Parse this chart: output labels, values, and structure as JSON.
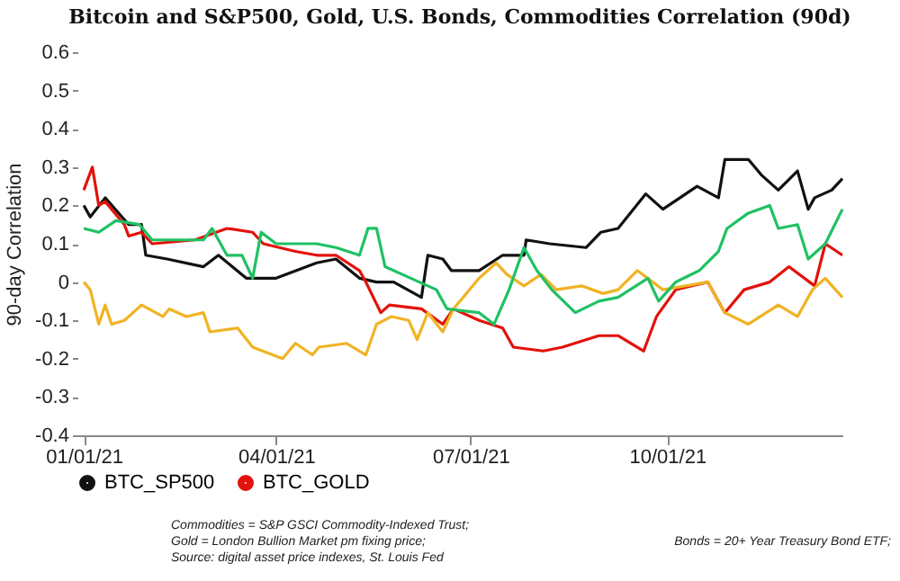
{
  "chart_data": {
    "type": "line",
    "title": "Bitcoin and S&P500, Gold, U.S. Bonds, Commodities Correlation (90d)",
    "ylabel": "90-day Correlation",
    "xlim": [
      "2020-12-29",
      "2021-12-22"
    ],
    "xticks": [
      {
        "value": "2021-01-01",
        "label": "01/01/21"
      },
      {
        "value": "2021-04-01",
        "label": "04/01/21"
      },
      {
        "value": "2021-07-01",
        "label": "07/01/21"
      },
      {
        "value": "2021-10-01",
        "label": "10/01/21"
      }
    ],
    "ylim": [
      -0.4,
      0.6
    ],
    "yticks": [
      -0.4,
      -0.3,
      -0.2,
      -0.1,
      0,
      0.1,
      0.2,
      0.3,
      0.4,
      0.5,
      0.6
    ],
    "grid": false,
    "legend": "bottom",
    "marker": "none",
    "line_style": "solid",
    "series": [
      {
        "name": "BTC_SP500",
        "color": "#111111",
        "x": [
          "2021-01-01",
          "2021-01-04",
          "2021-01-11",
          "2021-01-22",
          "2021-01-28",
          "2021-01-30",
          "2021-02-09",
          "2021-02-26",
          "2021-03-05",
          "2021-03-18",
          "2021-04-01",
          "2021-04-20",
          "2021-04-29",
          "2021-05-10",
          "2021-05-18",
          "2021-05-26",
          "2021-06-08",
          "2021-06-11",
          "2021-06-18",
          "2021-06-22",
          "2021-07-05",
          "2021-07-16",
          "2021-07-26",
          "2021-07-27",
          "2021-08-07",
          "2021-08-24",
          "2021-08-31",
          "2021-09-08",
          "2021-09-21",
          "2021-09-29",
          "2021-10-15",
          "2021-10-25",
          "2021-10-28",
          "2021-11-08",
          "2021-11-14",
          "2021-11-22",
          "2021-12-01",
          "2021-12-06",
          "2021-12-09",
          "2021-12-17",
          "2021-12-22"
        ],
        "values": [
          0.2,
          0.17,
          0.22,
          0.15,
          0.15,
          0.07,
          0.06,
          0.04,
          0.07,
          0.01,
          0.01,
          0.05,
          0.06,
          0.01,
          0,
          0,
          -0.04,
          0.07,
          0.06,
          0.03,
          0.03,
          0.07,
          0.07,
          0.11,
          0.1,
          0.09,
          0.13,
          0.14,
          0.23,
          0.19,
          0.25,
          0.22,
          0.32,
          0.32,
          0.28,
          0.24,
          0.29,
          0.19,
          0.22,
          0.24,
          0.27
        ]
      },
      {
        "name": "BTC_GOLD",
        "color": "#e3120b",
        "x": [
          "2021-01-01",
          "2021-01-05",
          "2021-01-08",
          "2021-01-11",
          "2021-01-20",
          "2021-01-22",
          "2021-01-28",
          "2021-02-02",
          "2021-02-22",
          "2021-03-09",
          "2021-03-21",
          "2021-03-26",
          "2021-04-10",
          "2021-04-20",
          "2021-04-29",
          "2021-05-10",
          "2021-05-13",
          "2021-05-20",
          "2021-05-24",
          "2021-06-08",
          "2021-06-18",
          "2021-06-23",
          "2021-07-05",
          "2021-07-16",
          "2021-07-21",
          "2021-08-04",
          "2021-08-13",
          "2021-08-30",
          "2021-09-08",
          "2021-09-20",
          "2021-09-26",
          "2021-10-05",
          "2021-10-20",
          "2021-10-28",
          "2021-11-06",
          "2021-11-18",
          "2021-11-27",
          "2021-12-09",
          "2021-12-14",
          "2021-12-22"
        ],
        "values": [
          0.24,
          0.3,
          0.2,
          0.21,
          0.15,
          0.12,
          0.13,
          0.1,
          0.11,
          0.14,
          0.13,
          0.1,
          0.08,
          0.07,
          0.07,
          0.03,
          0,
          -0.08,
          -0.06,
          -0.07,
          -0.11,
          -0.07,
          -0.1,
          -0.12,
          -0.17,
          -0.18,
          -0.17,
          -0.14,
          -0.14,
          -0.18,
          -0.09,
          -0.02,
          0,
          -0.08,
          -0.02,
          0,
          0.04,
          -0.01,
          0.1,
          0.07
        ]
      },
      {
        "color": "#f0b323",
        "x": [
          "2021-01-01",
          "2021-01-04",
          "2021-01-08",
          "2021-01-11",
          "2021-01-14",
          "2021-01-20",
          "2021-01-28",
          "2021-02-07",
          "2021-02-10",
          "2021-02-18",
          "2021-02-26",
          "2021-03-01",
          "2021-03-14",
          "2021-03-21",
          "2021-04-04",
          "2021-04-10",
          "2021-04-18",
          "2021-04-21",
          "2021-05-04",
          "2021-05-13",
          "2021-05-18",
          "2021-05-25",
          "2021-06-02",
          "2021-06-06",
          "2021-06-11",
          "2021-06-18",
          "2021-06-23",
          "2021-07-05",
          "2021-07-13",
          "2021-07-18",
          "2021-07-26",
          "2021-08-03",
          "2021-08-10",
          "2021-08-22",
          "2021-09-01",
          "2021-09-08",
          "2021-09-17",
          "2021-09-29",
          "2021-10-20",
          "2021-10-28",
          "2021-11-08",
          "2021-11-22",
          "2021-12-01",
          "2021-12-08",
          "2021-12-14",
          "2021-12-22"
        ],
        "values": [
          0,
          -0.02,
          -0.11,
          -0.06,
          -0.11,
          -0.1,
          -0.06,
          -0.09,
          -0.07,
          -0.09,
          -0.08,
          -0.13,
          -0.12,
          -0.17,
          -0.2,
          -0.16,
          -0.19,
          -0.17,
          -0.16,
          -0.19,
          -0.11,
          -0.09,
          -0.1,
          -0.15,
          -0.08,
          -0.13,
          -0.07,
          0.01,
          0.05,
          0.02,
          -0.01,
          0.02,
          -0.02,
          -0.01,
          -0.03,
          -0.02,
          0.03,
          -0.02,
          0,
          -0.08,
          -0.11,
          -0.06,
          -0.09,
          -0.02,
          0.01,
          -0.04
        ]
      },
      {
        "color": "#1fc163",
        "x": [
          "2021-01-01",
          "2021-01-08",
          "2021-01-16",
          "2021-01-27",
          "2021-02-02",
          "2021-02-09",
          "2021-02-26",
          "2021-03-02",
          "2021-03-09",
          "2021-03-16",
          "2021-03-21",
          "2021-03-25",
          "2021-04-01",
          "2021-04-20",
          "2021-04-29",
          "2021-05-10",
          "2021-05-14",
          "2021-05-18",
          "2021-05-22",
          "2021-06-03",
          "2021-06-15",
          "2021-06-20",
          "2021-07-05",
          "2021-07-12",
          "2021-07-19",
          "2021-07-26",
          "2021-08-01",
          "2021-08-08",
          "2021-08-19",
          "2021-08-30",
          "2021-09-08",
          "2021-09-22",
          "2021-09-27",
          "2021-10-05",
          "2021-10-16",
          "2021-10-25",
          "2021-10-29",
          "2021-11-08",
          "2021-11-18",
          "2021-11-22",
          "2021-12-01",
          "2021-12-06",
          "2021-12-14",
          "2021-12-22"
        ],
        "values": [
          0.14,
          0.13,
          0.16,
          0.15,
          0.11,
          0.11,
          0.11,
          0.14,
          0.07,
          0.07,
          0.01,
          0.13,
          0.1,
          0.1,
          0.09,
          0.07,
          0.14,
          0.14,
          0.04,
          0.01,
          -0.02,
          -0.07,
          -0.08,
          -0.11,
          -0.02,
          0.09,
          0.03,
          -0.02,
          -0.08,
          -0.05,
          -0.04,
          0.01,
          -0.05,
          0,
          0.03,
          0.08,
          0.14,
          0.18,
          0.2,
          0.14,
          0.15,
          0.06,
          0.1,
          0.19
        ]
      }
    ],
    "annotations": [
      "Commodities = S&P GSCI Commodity-Indexed Trust;",
      "Gold = London Bullion Market pm fixing price;",
      "Bonds = 20+ Year Treasury Bond ETF;",
      "Source: digital asset price indexes, St. Louis Fed"
    ]
  }
}
